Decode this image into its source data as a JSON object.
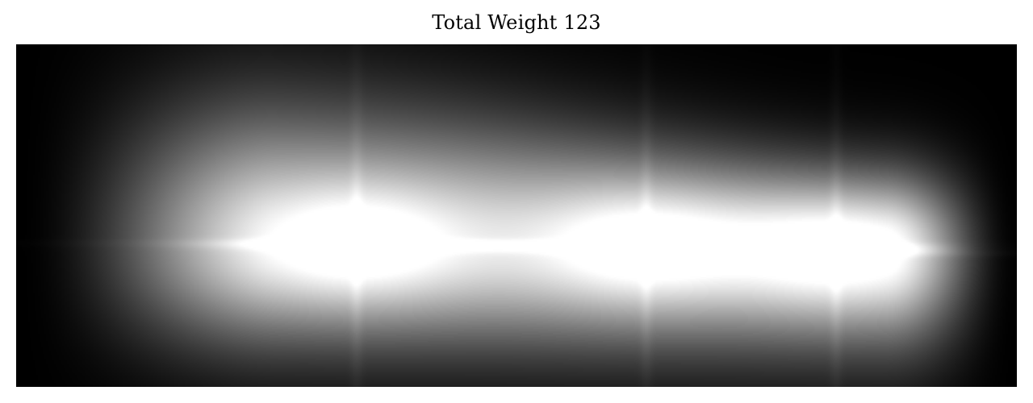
{
  "chart_data": {
    "type": "heatmap",
    "title": "Total Weight 123",
    "colormap": "grayscale",
    "background": "#000000",
    "highlight": "#ffffff",
    "xlabel": "",
    "ylabel": "",
    "grid": false,
    "legend": "none",
    "peaks": [
      {
        "x": 0.34,
        "y": 0.58,
        "intensity": 1.0
      },
      {
        "x": 0.63,
        "y": 0.59,
        "intensity": 0.97
      },
      {
        "x": 0.82,
        "y": 0.61,
        "intensity": 0.95
      }
    ]
  }
}
